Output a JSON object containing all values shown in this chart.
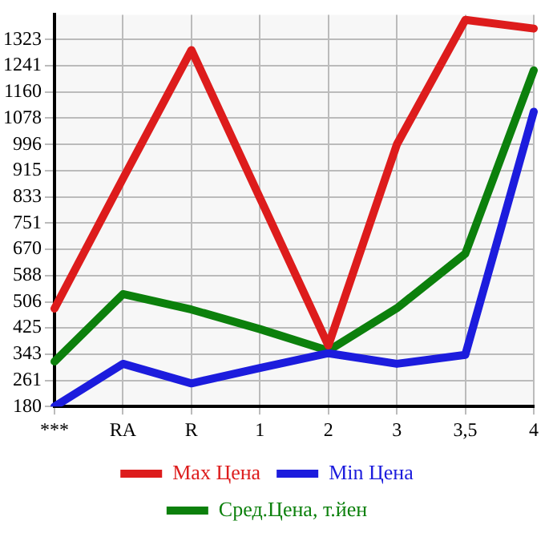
{
  "chart_data": {
    "type": "line",
    "categories": [
      "***",
      "RA",
      "R",
      "1",
      "2",
      "3",
      "3,5",
      "4"
    ],
    "series": [
      {
        "name": "Max Цена",
        "color": "#dd1c1c",
        "values": [
          485,
          890,
          1290,
          830,
          370,
          996,
          1384,
          1357
        ]
      },
      {
        "name": "Min Цена",
        "color": "#1c1cdd",
        "values": [
          180,
          313,
          252,
          300,
          346,
          313,
          341,
          1098
        ]
      },
      {
        "name": "Сред.Цена, т.йен",
        "color": "#0c800c",
        "values": [
          320,
          530,
          482,
          421,
          354,
          486,
          656,
          1227
        ]
      }
    ],
    "ylim": [
      180,
      1400
    ],
    "yticks": [
      180,
      261,
      343,
      425,
      506,
      588,
      670,
      751,
      833,
      915,
      996,
      1078,
      1160,
      1241,
      1323
    ],
    "grid": true,
    "legend": "bottom",
    "marker": "none",
    "line_style": "solid"
  }
}
